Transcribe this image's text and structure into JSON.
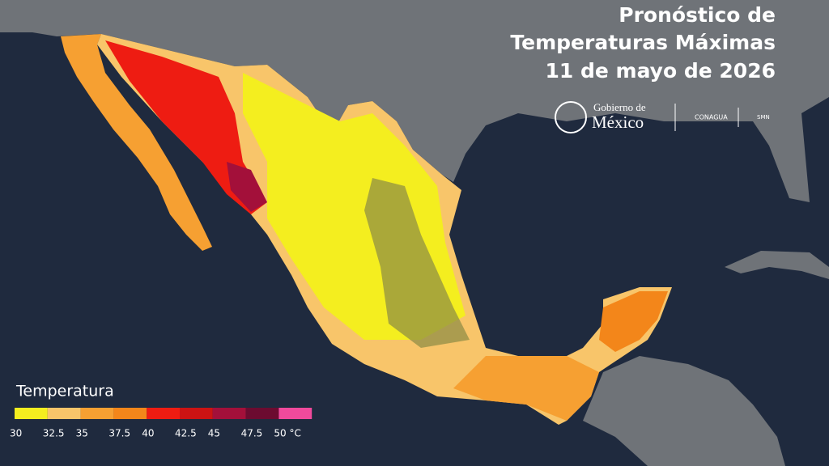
{
  "title": [
    "Pronóstico de",
    "Temperaturas Máximas",
    "11 de mayo de 2026"
  ],
  "logos": {
    "gobierno": "Gobierno de",
    "mexico": "México",
    "conagua": "CONAGUA",
    "smn": "SMN"
  },
  "legend": {
    "title": "Temperatura",
    "colors": [
      "#f4ee1f",
      "#f8c56a",
      "#f6a032",
      "#f3861a",
      "#ee1c12",
      "#cc1313",
      "#a3103a",
      "#6c0b30",
      "#f04a9c"
    ],
    "ticks": [
      30,
      32.5,
      35,
      37.5,
      40,
      42.5,
      45,
      47.5,
      {
        "value": 50,
        "label": "50 °C"
      }
    ]
  }
}
